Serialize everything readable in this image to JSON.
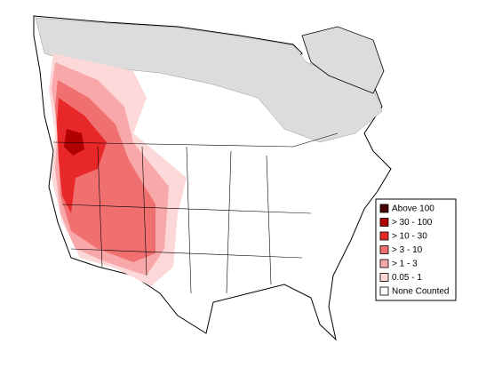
{
  "legend": {
    "items": [
      {
        "label": "Above 100",
        "color": "#4a0000"
      },
      {
        "label": "> 30 - 100",
        "color": "#b00000"
      },
      {
        "label": "> 10 - 30",
        "color": "#e82828"
      },
      {
        "label": "> 3 - 10",
        "color": "#f07070"
      },
      {
        "label": "> 1 - 3",
        "color": "#f8a8a8"
      },
      {
        "label": "0.05 - 1",
        "color": "#fcd8d8"
      },
      {
        "label": "None Counted",
        "color": "#ffffff"
      }
    ]
  }
}
